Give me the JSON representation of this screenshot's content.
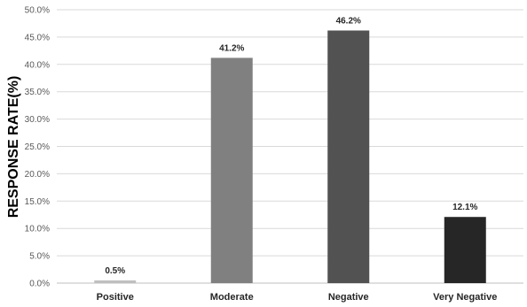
{
  "chart_data": {
    "type": "bar",
    "title": "",
    "xlabel": "",
    "ylabel": "RESPONSE RATE(%)",
    "categories": [
      "Positive",
      "Moderate",
      "Negative",
      "Very Negative"
    ],
    "values": [
      0.5,
      41.2,
      46.2,
      12.1
    ],
    "data_labels": [
      "0.5%",
      "41.2%",
      "46.2%",
      "12.1%"
    ],
    "ylim": [
      0,
      50
    ],
    "yticks": [
      0,
      5,
      10,
      15,
      20,
      25,
      30,
      35,
      40,
      45,
      50
    ],
    "ytick_labels": [
      "0.0%",
      "5.0%",
      "10.0%",
      "15.0%",
      "20.0%",
      "25.0%",
      "30.0%",
      "35.0%",
      "40.0%",
      "45.0%",
      "50.0%"
    ],
    "grid": true,
    "legend": "none",
    "colors": [
      "#bfbfbf",
      "#808080",
      "#525252",
      "#262626"
    ]
  }
}
